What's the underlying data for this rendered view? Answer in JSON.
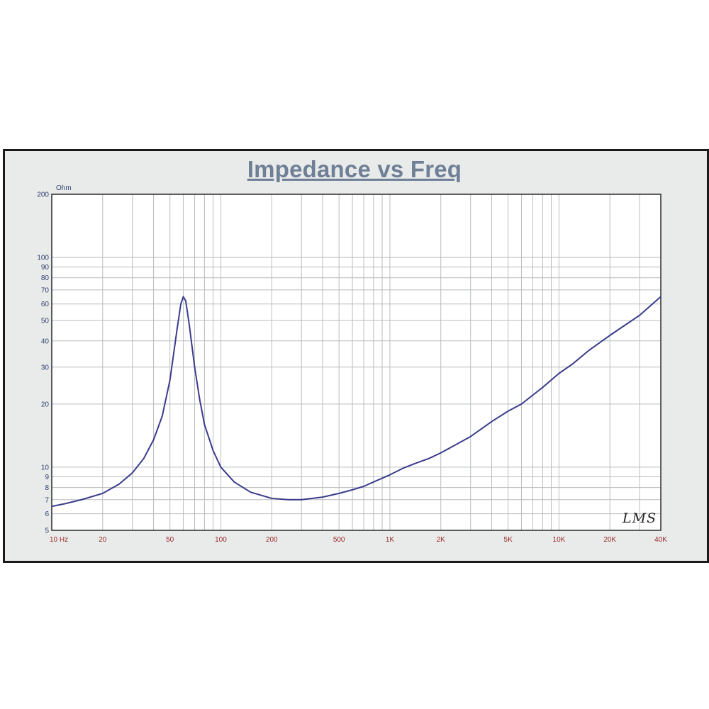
{
  "chart_data": {
    "type": "line",
    "title": "Impedance vs Freq",
    "ylabel": "Ohm",
    "xscale": "log",
    "yscale": "log",
    "xlim": [
      10,
      40000
    ],
    "ylim": [
      5,
      200
    ],
    "grid": true,
    "x_ticks": [
      {
        "v": 10,
        "label": "10  Hz"
      },
      {
        "v": 20,
        "label": "20"
      },
      {
        "v": 50,
        "label": "50"
      },
      {
        "v": 100,
        "label": "100"
      },
      {
        "v": 200,
        "label": "200"
      },
      {
        "v": 500,
        "label": "500"
      },
      {
        "v": 1000,
        "label": "1K"
      },
      {
        "v": 2000,
        "label": "2K"
      },
      {
        "v": 5000,
        "label": "5K"
      },
      {
        "v": 10000,
        "label": "10K"
      },
      {
        "v": 20000,
        "label": "20K"
      },
      {
        "v": 40000,
        "label": "40K"
      }
    ],
    "y_ticks": [
      {
        "v": 200,
        "label": "200"
      },
      {
        "v": 100,
        "label": "100"
      },
      {
        "v": 90,
        "label": "90"
      },
      {
        "v": 80,
        "label": "80"
      },
      {
        "v": 70,
        "label": "70"
      },
      {
        "v": 60,
        "label": "60"
      },
      {
        "v": 50,
        "label": "50"
      },
      {
        "v": 40,
        "label": "40"
      },
      {
        "v": 30,
        "label": "30"
      },
      {
        "v": 20,
        "label": "20"
      },
      {
        "v": 10,
        "label": "10"
      },
      {
        "v": 9,
        "label": "9"
      },
      {
        "v": 8,
        "label": "8"
      },
      {
        "v": 7,
        "label": "7"
      },
      {
        "v": 6,
        "label": "6"
      },
      {
        "v": 5,
        "label": "5"
      }
    ],
    "series": [
      {
        "color": "#3a3c8c",
        "points": [
          [
            10,
            6.5
          ],
          [
            12,
            6.7
          ],
          [
            15,
            7.0
          ],
          [
            20,
            7.5
          ],
          [
            25,
            8.3
          ],
          [
            30,
            9.4
          ],
          [
            35,
            11.0
          ],
          [
            40,
            13.5
          ],
          [
            45,
            17.5
          ],
          [
            50,
            26
          ],
          [
            55,
            45
          ],
          [
            58,
            60
          ],
          [
            60,
            65
          ],
          [
            62,
            62
          ],
          [
            65,
            48
          ],
          [
            70,
            30
          ],
          [
            75,
            21
          ],
          [
            80,
            16
          ],
          [
            90,
            12
          ],
          [
            100,
            10
          ],
          [
            120,
            8.5
          ],
          [
            150,
            7.6
          ],
          [
            200,
            7.1
          ],
          [
            250,
            7.0
          ],
          [
            300,
            7.0
          ],
          [
            400,
            7.2
          ],
          [
            500,
            7.5
          ],
          [
            600,
            7.8
          ],
          [
            700,
            8.1
          ],
          [
            800,
            8.5
          ],
          [
            1000,
            9.2
          ],
          [
            1200,
            9.9
          ],
          [
            1400,
            10.4
          ],
          [
            1700,
            11.0
          ],
          [
            2000,
            11.7
          ],
          [
            3000,
            14.0
          ],
          [
            4000,
            16.5
          ],
          [
            5000,
            18.5
          ],
          [
            6000,
            20.0
          ],
          [
            8000,
            24.0
          ],
          [
            10000,
            28.0
          ],
          [
            12000,
            31.0
          ],
          [
            15000,
            36.0
          ],
          [
            20000,
            42.5
          ],
          [
            30000,
            53.0
          ],
          [
            40000,
            65.0
          ]
        ]
      }
    ]
  },
  "watermark": "LMS"
}
